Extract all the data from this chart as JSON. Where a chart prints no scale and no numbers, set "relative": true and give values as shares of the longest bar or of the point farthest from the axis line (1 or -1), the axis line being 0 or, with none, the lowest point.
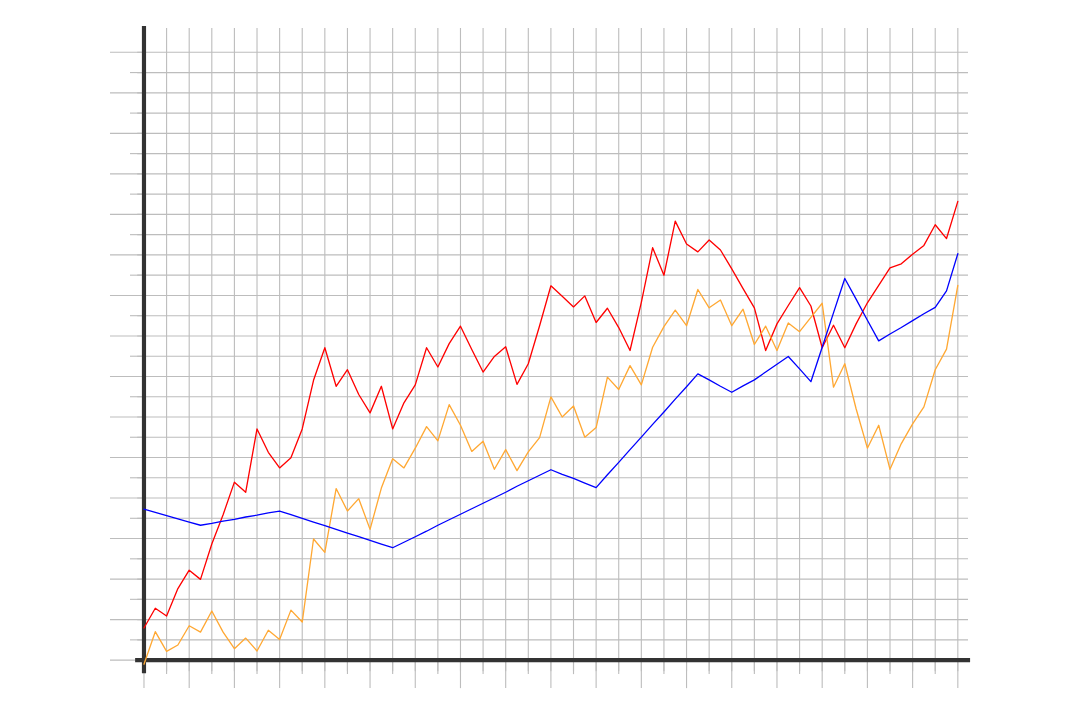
{
  "chart_data": {
    "type": "line",
    "relative": true,
    "grid": true,
    "categories": [
      null,
      null,
      null,
      null,
      null,
      null,
      null,
      null,
      null,
      null,
      null,
      null,
      null,
      null,
      null,
      null,
      null,
      null,
      null,
      null,
      null,
      null,
      null,
      null,
      null,
      null,
      null,
      null,
      null,
      null,
      null,
      null,
      null,
      null,
      null,
      null,
      null,
      null,
      null,
      null,
      null,
      null,
      null,
      null,
      null,
      null,
      null,
      null,
      null,
      null,
      null,
      null,
      null,
      null,
      null,
      null,
      null,
      null,
      null,
      null,
      null,
      null,
      null,
      null,
      null,
      null,
      null,
      null,
      null,
      null,
      null,
      null,
      null
    ],
    "series": [
      {
        "color": "#ff0000",
        "values": [
          0.07,
          0.113,
          0.096,
          0.156,
          0.196,
          0.176,
          0.253,
          0.317,
          0.388,
          0.366,
          0.504,
          0.453,
          0.419,
          0.441,
          0.504,
          0.61,
          0.681,
          0.597,
          0.633,
          0.579,
          0.539,
          0.597,
          0.504,
          0.561,
          0.6,
          0.681,
          0.639,
          0.69,
          0.728,
          0.677,
          0.628,
          0.662,
          0.683,
          0.601,
          0.646,
          0.729,
          0.816,
          0.793,
          0.77,
          0.794,
          0.736,
          0.767,
          0.725,
          0.675,
          0.78,
          0.899,
          0.839,
          0.957,
          0.907,
          0.89,
          0.916,
          0.894,
          0.853,
          0.81,
          0.768,
          0.675,
          0.733,
          0.773,
          0.812,
          0.772,
          0.681,
          0.73,
          0.681,
          0.733,
          0.779,
          0.817,
          0.855,
          0.864,
          0.885,
          0.904,
          0.949,
          0.919,
          1
        ]
      },
      {
        "color": "#ffa833",
        "values": [
          -0.009,
          0.062,
          0.019,
          0.033,
          0.075,
          0.061,
          0.107,
          0.061,
          0.025,
          0.048,
          0.02,
          0.065,
          0.045,
          0.109,
          0.083,
          0.264,
          0.235,
          0.374,
          0.325,
          0.352,
          0.285,
          0.375,
          0.439,
          0.419,
          0.462,
          0.509,
          0.478,
          0.557,
          0.512,
          0.455,
          0.477,
          0.416,
          0.459,
          0.413,
          0.454,
          0.485,
          0.574,
          0.53,
          0.554,
          0.486,
          0.507,
          0.617,
          0.59,
          0.642,
          0.6,
          0.682,
          0.727,
          0.763,
          0.729,
          0.808,
          0.768,
          0.785,
          0.729,
          0.765,
          0.688,
          0.728,
          0.675,
          0.735,
          0.716,
          0.747,
          0.778,
          0.595,
          0.646,
          0.548,
          0.462,
          0.512,
          0.416,
          0.472,
          0.515,
          0.552,
          0.633,
          0.678,
          0.817
        ]
      },
      {
        "color": "#0000ff",
        "values": [
          0.329,
          0.322,
          0.315,
          0.308,
          0.301,
          0.294,
          0.298,
          0.303,
          0.307,
          0.312,
          0.316,
          0.321,
          0.325,
          0.317,
          0.309,
          0.301,
          0.293,
          0.285,
          0.277,
          0.269,
          0.261,
          0.253,
          0.245,
          0.257,
          0.269,
          0.281,
          0.294,
          0.306,
          0.318,
          0.33,
          0.342,
          0.354,
          0.366,
          0.379,
          0.391,
          0.403,
          0.415,
          0.405,
          0.396,
          0.386,
          0.376,
          0.404,
          0.431,
          0.459,
          0.486,
          0.514,
          0.541,
          0.569,
          0.596,
          0.624,
          0.611,
          0.597,
          0.584,
          0.598,
          0.611,
          0.628,
          0.645,
          0.662,
          0.635,
          0.607,
          0.682,
          0.757,
          0.832,
          0.787,
          0.741,
          0.696,
          0.711,
          0.725,
          0.74,
          0.755,
          0.769,
          0.805,
          0.886
        ]
      }
    ]
  }
}
